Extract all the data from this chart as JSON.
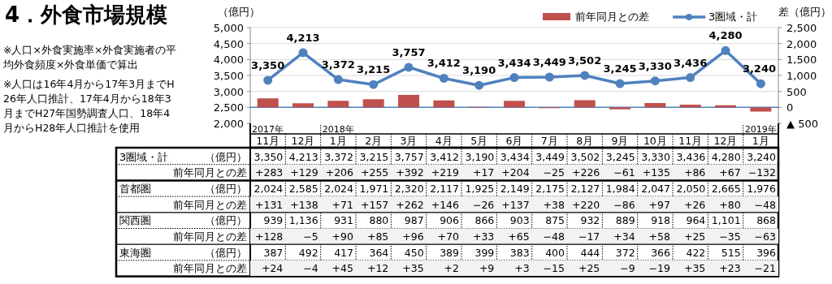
{
  "chart_data": [
    {
      "type": "bar",
      "title": "4．外食市場規模",
      "ylabel": "（億円）",
      "y2label": "差（億円）",
      "categories": [
        "11月",
        "12月",
        "1月",
        "2月",
        "3月",
        "4月",
        "5月",
        "6月",
        "7月",
        "8月",
        "9月",
        "10月",
        "11月",
        "12月",
        "1月"
      ],
      "series": [
        {
          "name": "前年同月との差",
          "axis": "y2",
          "color": "#c0504d",
          "values": [
            283,
            129,
            206,
            255,
            392,
            219,
            17,
            204,
            -25,
            226,
            -61,
            135,
            86,
            67,
            -132
          ],
          "value_labels": [
            "+283",
            "+129",
            "+206",
            "+255",
            "+392",
            "+219",
            "+17",
            "+204",
            "−25",
            "+226",
            "−61",
            "+135",
            "+86",
            "+67",
            "−132"
          ]
        },
        {
          "name": "3圏域・計",
          "type": "line",
          "axis": "y",
          "color": "#4f81bd",
          "marker": "circle",
          "values": [
            3350,
            4213,
            3372,
            3215,
            3757,
            3412,
            3190,
            3434,
            3449,
            3502,
            3245,
            3330,
            3436,
            4280,
            3240
          ],
          "value_labels": [
            "3,350",
            "4,213",
            "3,372",
            "3,215",
            "3,757",
            "3,412",
            "3,190",
            "3,434",
            "3,449",
            "3,502",
            "3,245",
            "3,330",
            "3,436",
            "4,280",
            "3,240"
          ]
        }
      ],
      "ylim": [
        2000,
        5000
      ],
      "yticks": [
        {
          "value": 2000,
          "label": "2,000"
        },
        {
          "value": 2500,
          "label": "2,500"
        },
        {
          "value": 3000,
          "label": "3,000"
        },
        {
          "value": 3500,
          "label": "3,500"
        },
        {
          "value": 4000,
          "label": "4,000"
        },
        {
          "value": 4500,
          "label": "4,500"
        },
        {
          "value": 5000,
          "label": "5,000"
        }
      ],
      "y2lim": [
        -500,
        2500
      ],
      "y2ticks": [
        {
          "value": -500,
          "label": "▲ 500"
        },
        0,
        500,
        {
          "value": 1000,
          "label": "1,000"
        },
        {
          "value": 1500,
          "label": "1,500"
        },
        {
          "value": 2000,
          "label": "2,000"
        },
        {
          "value": 2500,
          "label": "2,500"
        }
      ],
      "grid": "y",
      "legend": "top right",
      "ref_lines": [
        {
          "axis": "y2",
          "value": 0,
          "color": "#4f81bd"
        }
      ],
      "annotations": [
        "※人口×外食実施率×外食実施者の平均外食頻度×外食単価で算出",
        "※人口は16年4月から17年3月までH26年人口推計、17年4月から18年3月までH27年国勢調査人口、18年4月からH28年人口推計を使用",
        "2017年",
        "2018年",
        "2019年"
      ]
    },
    {
      "type": "other",
      "annotations": [
        "首都圏",
        "（億円）",
        "2,024",
        "2,585",
        "2,024",
        "1,971",
        "2,320",
        "2,117",
        "1,925",
        "2,149",
        "2,175",
        "2,127",
        "1,984",
        "2,047",
        "2,050",
        "2,665",
        "1,976",
        "前年同月との差",
        "+131",
        "+138",
        "+71",
        "+157",
        "+262",
        "+146",
        "−26",
        "+137",
        "+38",
        "+220",
        "−86",
        "+97",
        "+26",
        "+80",
        "−48",
        "関西圏",
        "（億円）",
        "939",
        "1,136",
        "931",
        "880",
        "987",
        "906",
        "866",
        "903",
        "875",
        "932",
        "889",
        "918",
        "964",
        "1,101",
        "868",
        "前年同月との差",
        "+128",
        "−5",
        "+90",
        "+85",
        "+96",
        "+70",
        "+33",
        "+65",
        "−48",
        "−17",
        "+34",
        "+58",
        "+25",
        "−35",
        "−63",
        "東海圏",
        "（億円）",
        "387",
        "492",
        "417",
        "364",
        "450",
        "389",
        "399",
        "383",
        "400",
        "444",
        "372",
        "366",
        "422",
        "515",
        "396",
        "前年同月との差",
        "+24",
        "−4",
        "+45",
        "+12",
        "+35",
        "+2",
        "+9",
        "+3",
        "−15",
        "+25",
        "−9",
        "−19",
        "+35",
        "+23",
        "−21"
      ]
    }
  ]
}
